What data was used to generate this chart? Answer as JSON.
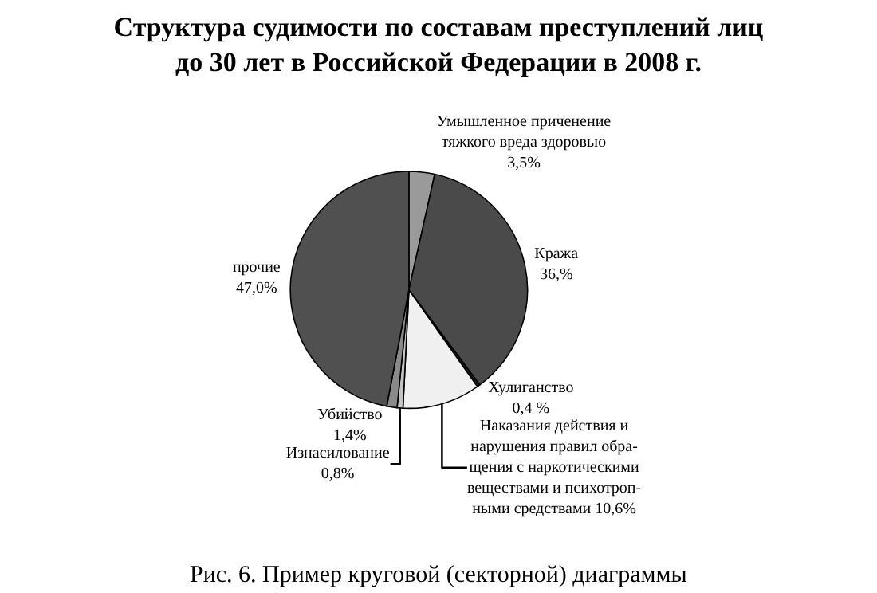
{
  "chart_data": {
    "type": "pie",
    "title": "Структура судимости по составам преступлений лиц\nдо 30 лет в Российской Федерации в 2008 г.",
    "categories": [
      "Умышленное приченение\nтяжкого вреда здоровью",
      "Кража",
      "Хулиганство",
      "Наказания действия и\nнарушения правил обра-\nщения с наркотическими\nвеществами и психотроп-\nными средствами",
      "Изнасилование",
      "Убийство",
      "прочие"
    ],
    "values": [
      3.5,
      36.3,
      0.4,
      10.6,
      0.8,
      1.4,
      47.0
    ],
    "value_labels": [
      "3,5%",
      "36,%",
      "0,4 %",
      "10,6%",
      "0,8%",
      "1,4%",
      "47,0%"
    ],
    "colors": [
      "#9a9a9a",
      "#4a4a4a",
      "#1a1a1a",
      "#f0f0f0",
      "#c4c4c4",
      "#8a8a8a",
      "#505050"
    ],
    "annotations": [
      "Рис. 6. Пример круговой (секторной) диаграммы"
    ]
  }
}
